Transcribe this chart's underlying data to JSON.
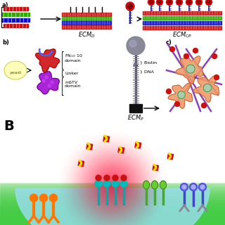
{
  "bg_color": "#ffffff",
  "ecmd_text": "ECM$_D$",
  "ecmcp_text": "ECM$_{CP}$",
  "ecmp_text": "ECM$_P$",
  "colors": {
    "red": "#cc1111",
    "green": "#33aa00",
    "blue": "#1111cc",
    "purple": "#9900cc",
    "gray": "#666688",
    "yellow": "#ffdd00",
    "orange": "#ff8800",
    "teal": "#00aaaa",
    "light_blue": "#99ddee",
    "salmon": "#ee8855",
    "dark_red": "#880000",
    "dark_blue": "#222299",
    "pink_red": "#ff2255"
  }
}
